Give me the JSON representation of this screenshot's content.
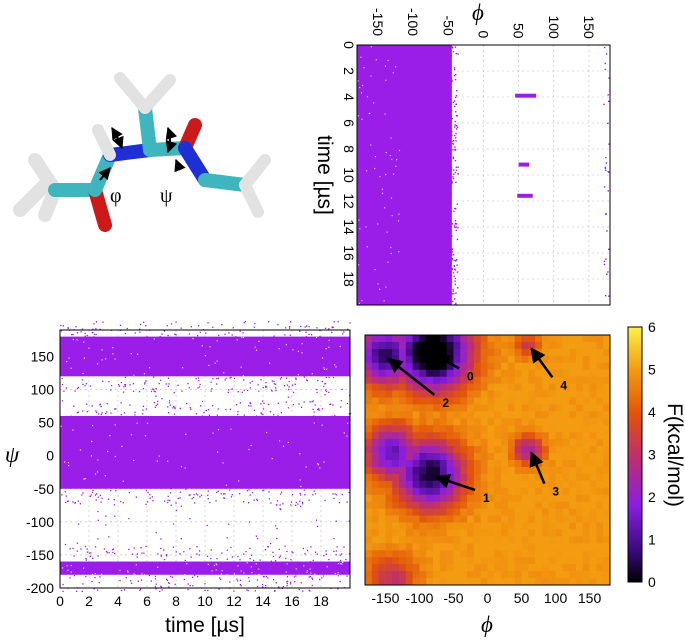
{
  "molecule": {
    "labels": [
      "φ",
      "ψ"
    ],
    "colors": {
      "carbon": "#3fb5bd",
      "nitrogen": "#1f2fd6",
      "oxygen": "#cc1a1a",
      "hydrogen": "#e2e2e2"
    }
  },
  "colors": {
    "scatter": "#9b1ee8",
    "grid": "#bdbdbd",
    "frame": "#000000"
  },
  "chart_data": [
    {
      "id": "phi-vs-time",
      "type": "scatter",
      "title": "",
      "xlabel": "ϕ",
      "ylabel": "time [µs]",
      "xlim": [
        -180,
        180
      ],
      "ylim": [
        0,
        20
      ],
      "y_inverted": true,
      "x_ticks": [
        -150,
        -100,
        -50,
        0,
        50,
        100,
        150
      ],
      "y_ticks": [
        0,
        2,
        4,
        6,
        8,
        10,
        12,
        14,
        16,
        18
      ],
      "x_tick_labels": [
        "-150",
        "-100",
        "-50",
        "0",
        "50",
        "100",
        "150"
      ],
      "y_tick_labels": [
        "0",
        "2",
        "4",
        "6",
        "8",
        "10",
        "12",
        "14",
        "16",
        "18"
      ],
      "grid": true,
      "main_band_phi": [
        -180,
        -45
      ],
      "excursions": [
        {
          "phi_range": [
            45,
            75
          ],
          "time": 3.9
        },
        {
          "phi_range": [
            50,
            65
          ],
          "time": 9.2
        },
        {
          "phi_range": [
            48,
            70
          ],
          "time": 11.6
        }
      ]
    },
    {
      "id": "psi-vs-time",
      "type": "scatter",
      "title": "",
      "xlabel": "time [µs]",
      "ylabel": "ψ",
      "xlim": [
        0,
        20
      ],
      "ylim": [
        -200,
        190
      ],
      "x_ticks": [
        0,
        2,
        4,
        6,
        8,
        10,
        12,
        14,
        16,
        18
      ],
      "y_ticks": [
        -200,
        -150,
        -100,
        -50,
        0,
        50,
        100,
        150
      ],
      "x_tick_labels": [
        "0",
        "2",
        "4",
        "6",
        "8",
        "10",
        "12",
        "14",
        "16",
        "18"
      ],
      "y_tick_labels": [
        "-200",
        "-150",
        "-100",
        "-50",
        "0",
        "50",
        "100",
        "150"
      ],
      "grid": true,
      "bands": [
        {
          "psi_range": [
            120,
            180
          ],
          "density": "high"
        },
        {
          "psi_range": [
            -50,
            60
          ],
          "density": "high"
        },
        {
          "psi_range": [
            -180,
            -160
          ],
          "density": "high"
        }
      ]
    },
    {
      "id": "free-energy-map",
      "type": "heatmap",
      "title": "",
      "xlabel": "ϕ",
      "ylabel": "",
      "colorbar_label": "F(kcal/mol)",
      "xlim": [
        -180,
        180
      ],
      "ylim": [
        -180,
        180
      ],
      "x_ticks": [
        -150,
        -100,
        -50,
        0,
        50,
        100,
        150
      ],
      "x_tick_labels": [
        "-150",
        "-100",
        "-50",
        "0",
        "50",
        "100",
        "150"
      ],
      "colorbar_range": [
        0,
        6
      ],
      "colorbar_ticks": [
        "0",
        "1",
        "2",
        "3",
        "4",
        "5",
        "6"
      ],
      "minima": [
        {
          "label": "0",
          "phi": -80,
          "psi": 155
        },
        {
          "label": "1",
          "phi": -80,
          "psi": -20
        },
        {
          "label": "2",
          "phi": -150,
          "psi": 150
        },
        {
          "label": "3",
          "phi": 60,
          "psi": 15
        },
        {
          "label": "4",
          "phi": 60,
          "psi": 165
        }
      ]
    }
  ]
}
